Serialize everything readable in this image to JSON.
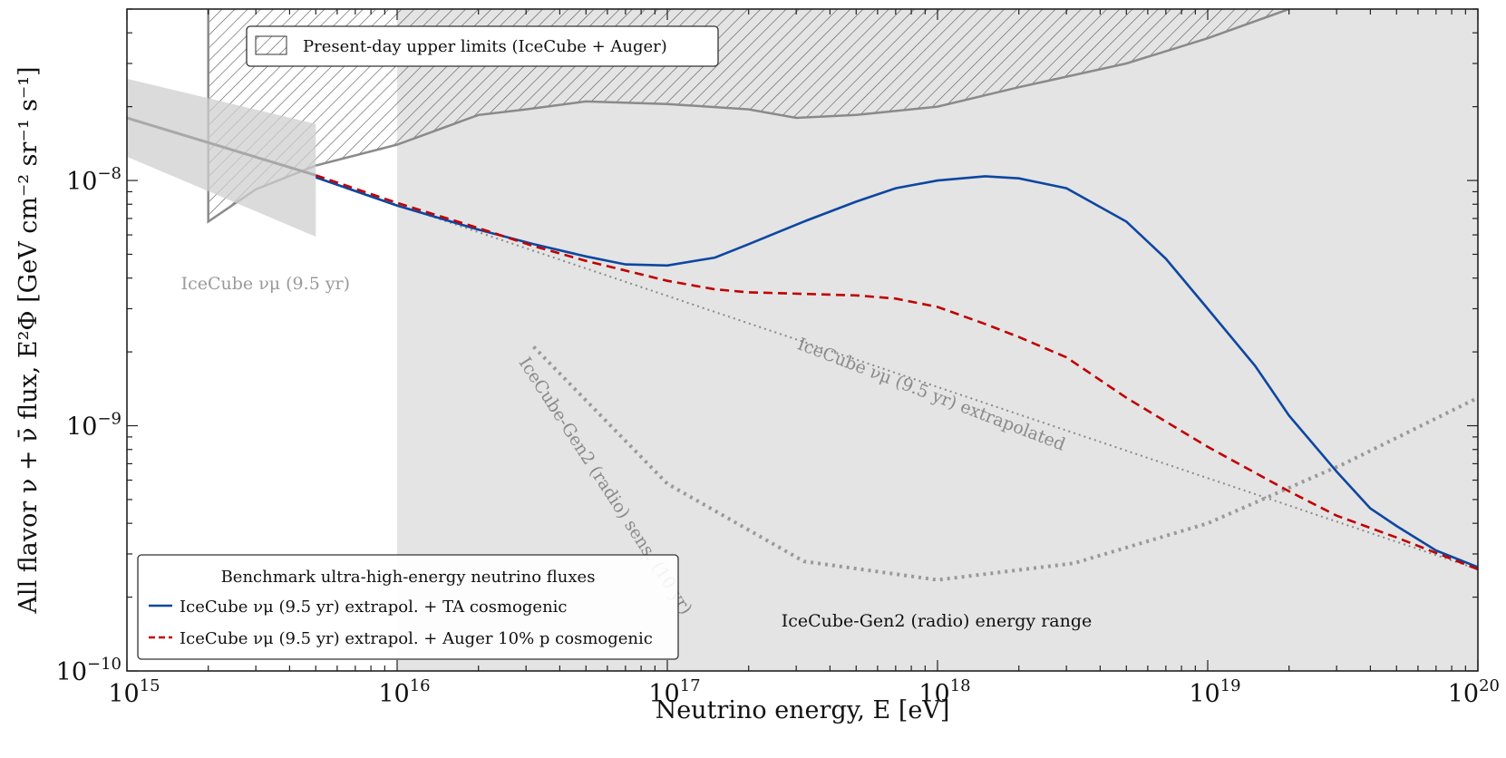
{
  "chart_data": {
    "type": "line",
    "xscale": "log",
    "yscale": "log",
    "xlim": [
      1000000000000000.0,
      1e+20
    ],
    "ylim": [
      1e-10,
      5e-08
    ],
    "xlabel": "Neutrino energy, E [eV]",
    "ylabel": "All flavor ν + ν̄ flux, E²Φ [GeV cm⁻² sr⁻¹ s⁻¹]",
    "x_ticks": [
      {
        "value": 1000000000000000.0,
        "label": "10^15"
      },
      {
        "value": 1e+16,
        "label": "10^16"
      },
      {
        "value": 1e+17,
        "label": "10^17"
      },
      {
        "value": 1e+18,
        "label": "10^18"
      },
      {
        "value": 1e+19,
        "label": "10^19"
      },
      {
        "value": 1e+20,
        "label": "10^20"
      }
    ],
    "y_ticks": [
      {
        "value": 1e-10,
        "label": "10^−10"
      },
      {
        "value": 1e-09,
        "label": "10^−9"
      },
      {
        "value": 1e-08,
        "label": "10^−8"
      }
    ],
    "colors": {
      "ta_cosmogenic": "#0d47a1",
      "auger_cosmogenic": "#c00000",
      "gray_line": "#8a8a8a",
      "band_fill": "#e4e4e4",
      "icecube_band": "#d6d6d6"
    },
    "gen2_energy_range": {
      "x_min": 1e+16,
      "x_max": 1e+20,
      "label": "IceCube-Gen2 (radio) energy range"
    },
    "upper_limits": {
      "label": "Present-day upper limits (IceCube + Auger)",
      "x_min": 2000000000000000.0,
      "lower_boundary": [
        [
          2000000000000000.0,
          6.8e-09
        ],
        [
          3000000000000000.0,
          9.2e-09
        ],
        [
          5000000000000000.0,
          1.15e-08
        ],
        [
          1e+16,
          1.4e-08
        ],
        [
          2e+16,
          1.85e-08
        ],
        [
          3e+16,
          1.95e-08
        ],
        [
          5e+16,
          2.1e-08
        ],
        [
          1e+17,
          2.05e-08
        ],
        [
          2e+17,
          1.95e-08
        ],
        [
          3e+17,
          1.8e-08
        ],
        [
          5e+17,
          1.85e-08
        ],
        [
          1e+18,
          2e-08
        ],
        [
          2e+18,
          2.4e-08
        ],
        [
          5e+18,
          3e-08
        ],
        [
          1e+19,
          3.8e-08
        ],
        [
          2e+19,
          5e-08
        ]
      ]
    },
    "icecube_numu_fit": {
      "label": "IceCube νμ (9.5 yr)",
      "x_range": [
        1000000000000000.0,
        5000000000000000.0
      ],
      "y_center": [
        1.8e-08,
        1.05e-08
      ],
      "y_upper": [
        2.6e-08,
        1.7e-08
      ],
      "y_lower": [
        1.25e-08,
        5.9e-09
      ]
    },
    "icecube_extrapolated": {
      "label": "IceCube νμ (9.5 yr) extrapolated",
      "points": [
        [
          5000000000000000.0,
          1.03e-08
        ],
        [
          1e+20,
          2.6e-10
        ]
      ]
    },
    "gen2_sensitivity": {
      "label": "IceCube-Gen2 (radio) sens. (10 yr)",
      "points": [
        [
          3.2e+16,
          2.1e-09
        ],
        [
          1e+17,
          5.8e-10
        ],
        [
          3.2e+17,
          2.8e-10
        ],
        [
          1e+18,
          2.35e-10
        ],
        [
          3.2e+18,
          2.75e-10
        ],
        [
          1e+19,
          4e-10
        ],
        [
          3.2e+19,
          7e-10
        ],
        [
          1e+20,
          1.3e-09
        ]
      ]
    },
    "legend": {
      "title": "Benchmark ultra-high-energy neutrino fluxes",
      "placement": "lower-left"
    },
    "series": [
      {
        "name": "IceCube νμ (9.5 yr) extrapol. + TA cosmogenic",
        "style": "solid",
        "points": [
          [
            5000000000000000.0,
            1.03e-08
          ],
          [
            1e+16,
            7.9e-09
          ],
          [
            2e+16,
            6.3e-09
          ],
          [
            3.2e+16,
            5.5e-09
          ],
          [
            5e+16,
            4.9e-09
          ],
          [
            7e+16,
            4.55e-09
          ],
          [
            1e+17,
            4.5e-09
          ],
          [
            1.5e+17,
            4.85e-09
          ],
          [
            2e+17,
            5.5e-09
          ],
          [
            3.2e+17,
            6.8e-09
          ],
          [
            5e+17,
            8.2e-09
          ],
          [
            7e+17,
            9.3e-09
          ],
          [
            1e+18,
            1e-08
          ],
          [
            1.5e+18,
            1.04e-08
          ],
          [
            2e+18,
            1.02e-08
          ],
          [
            3e+18,
            9.3e-09
          ],
          [
            5e+18,
            6.8e-09
          ],
          [
            7e+18,
            4.8e-09
          ],
          [
            1e+19,
            3e-09
          ],
          [
            1.5e+19,
            1.75e-09
          ],
          [
            2e+19,
            1.1e-09
          ],
          [
            3e+19,
            6.5e-10
          ],
          [
            4e+19,
            4.6e-10
          ],
          [
            5e+19,
            3.9e-10
          ],
          [
            7e+19,
            3.1e-10
          ],
          [
            1e+20,
            2.65e-10
          ]
        ]
      },
      {
        "name": "IceCube νμ (9.5 yr) extrapol. + Auger 10% p cosmogenic",
        "style": "dashed",
        "points": [
          [
            5000000000000000.0,
            1.05e-08
          ],
          [
            1e+16,
            8.1e-09
          ],
          [
            2e+16,
            6.4e-09
          ],
          [
            3.2e+16,
            5.4e-09
          ],
          [
            5e+16,
            4.7e-09
          ],
          [
            1e+17,
            3.9e-09
          ],
          [
            1.5e+17,
            3.6e-09
          ],
          [
            2e+17,
            3.5e-09
          ],
          [
            3.2e+17,
            3.45e-09
          ],
          [
            5e+17,
            3.4e-09
          ],
          [
            7e+17,
            3.3e-09
          ],
          [
            1e+18,
            3.05e-09
          ],
          [
            1.5e+18,
            2.6e-09
          ],
          [
            2e+18,
            2.3e-09
          ],
          [
            3e+18,
            1.9e-09
          ],
          [
            5e+18,
            1.3e-09
          ],
          [
            1e+19,
            8.2e-10
          ],
          [
            2e+19,
            5.4e-10
          ],
          [
            3e+19,
            4.3e-10
          ],
          [
            5e+19,
            3.5e-10
          ],
          [
            1e+20,
            2.6e-10
          ]
        ]
      }
    ],
    "annotations": {
      "icecube_numu": "IceCube νμ (9.5 yr)",
      "extrapolated": "IceCube νμ (9.5 yr) extrapolated",
      "gen2_sens": "IceCube-Gen2 (radio) sens. (10 yr)",
      "gen2_range": "IceCube-Gen2 (radio) energy range"
    }
  }
}
